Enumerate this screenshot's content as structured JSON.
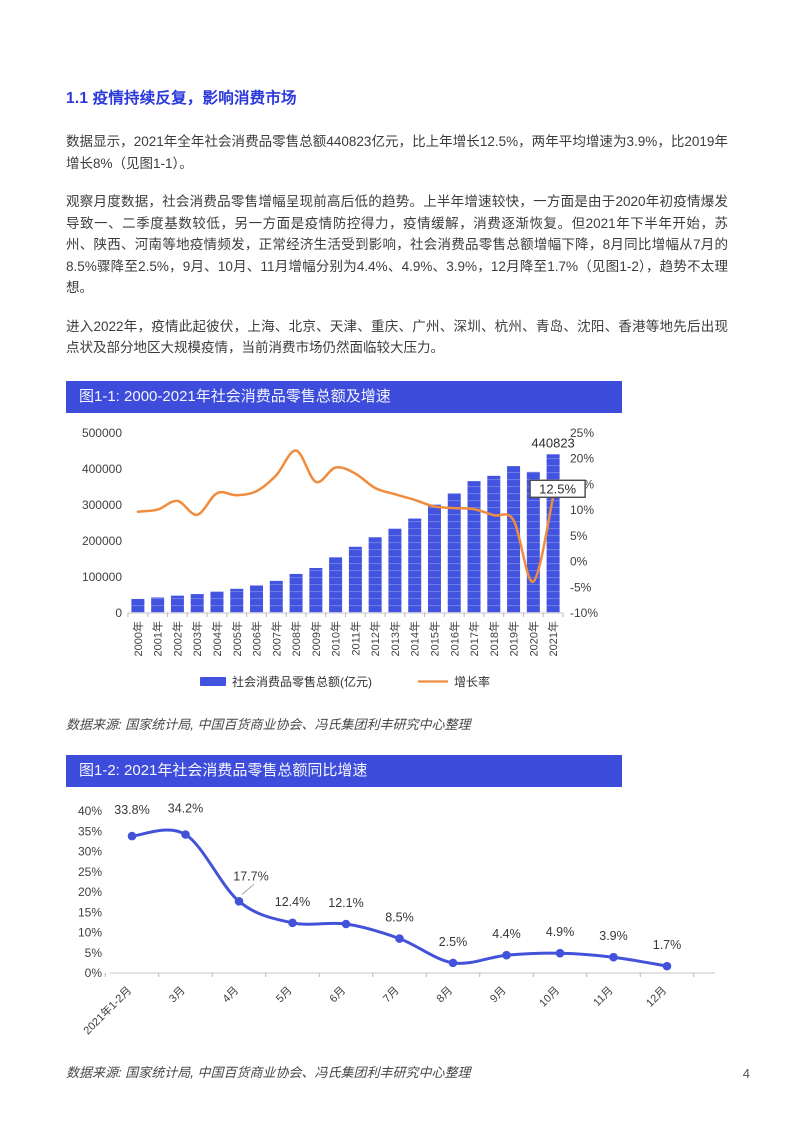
{
  "page": {
    "number": "4"
  },
  "heading": "1.1 疫情持续反复，影响消费市场",
  "paragraphs": [
    "数据显示，2021年全年社会消费品零售总额440823亿元，比上年增长12.5%，两年平均增速为3.9%，比2019年增长8%（见图1-1）。",
    "观察月度数据，社会消费品零售增幅呈现前高后低的趋势。上半年增速较快，一方面是由于2020年初疫情爆发导致一、二季度基数较低，另一方面是疫情防控得力，疫情缓解，消费逐渐恢复。但2021年下半年开始，苏州、陕西、河南等地疫情频发，正常经济生活受到影响，社会消费品零售总额增幅下降，8月同比增幅从7月的8.5%骤降至2.5%，9月、10月、11月增幅分别为4.4%、4.9%、3.9%，12月降至1.7%（见图1-2），趋势不太理想。",
    "进入2022年，疫情此起彼伏，上海、北京、天津、重庆、广州、深圳、杭州、青岛、沈阳、香港等地先后出现点状及部分地区大规模疫情，当前消费市场仍然面临较大压力。"
  ],
  "figure1": {
    "title": "图1-1: 2000-2021年社会消费品零售总额及增速",
    "source": "数据来源: 国家统计局, 中国百货商业协会、冯氏集团利丰研究中心整理"
  },
  "figure2": {
    "title": "图1-2: 2021年社会消费品零售总额同比增速",
    "source": "数据来源: 国家统计局, 中国百货商业协会、冯氏集团利丰研究中心整理"
  },
  "colors": {
    "heading_blue": "#2c39da",
    "titlebar_blue": "#3d4cda",
    "bar_blue": "#4254df",
    "line_orange": "#ef8c3e",
    "line2_blue": "#4353d9",
    "axis_text": "#404040",
    "baseline_gray": "#d9d9d9"
  },
  "chart_data": [
    {
      "type": "bar",
      "title": "图1-1: 2000-2021年社会消费品零售总额及增速",
      "categories": [
        "2000年",
        "2001年",
        "2002年",
        "2003年",
        "2004年",
        "2005年",
        "2006年",
        "2007年",
        "2008年",
        "2009年",
        "2010年",
        "2011年",
        "2012年",
        "2013年",
        "2014年",
        "2015年",
        "2016年",
        "2017年",
        "2018年",
        "2019年",
        "2020年",
        "2021年"
      ],
      "series": [
        {
          "name": "社会消费品零售总额(亿元)",
          "type": "bar",
          "axis": "left",
          "values": [
            39106,
            43055,
            48136,
            52516,
            59501,
            67177,
            76410,
            89210,
            108488,
            125048,
            154554,
            183919,
            210307,
            234380,
            262394,
            300931,
            332316,
            366262,
            380987,
            408017,
            391981,
            440823
          ]
        },
        {
          "name": "增长率",
          "type": "line",
          "axis": "right",
          "values": [
            9.7,
            10.1,
            11.8,
            9.1,
            13.3,
            12.9,
            13.7,
            16.8,
            21.6,
            15.5,
            18.3,
            17.1,
            14.3,
            13.1,
            12.0,
            10.7,
            10.4,
            10.2,
            9.0,
            8.0,
            -3.9,
            12.5
          ]
        }
      ],
      "left_axis": {
        "min": 0,
        "max": 500000,
        "ticks": [
          "0",
          "100000",
          "200000",
          "300000",
          "400000",
          "500000"
        ]
      },
      "right_axis": {
        "min": -10,
        "max": 25,
        "ticks": [
          "-10%",
          "-5%",
          "0%",
          "5%",
          "10%",
          "15%",
          "20%",
          "25%"
        ]
      },
      "annotations": {
        "last_bar_value": "440823",
        "line_end_label": "12.5%"
      },
      "legend_position": "bottom",
      "grid": false
    },
    {
      "type": "line",
      "title": "图1-2: 2021年社会消费品零售总额同比增速",
      "categories": [
        "2021年1-2月",
        "3月",
        "4月",
        "5月",
        "6月",
        "7月",
        "8月",
        "9月",
        "10月",
        "11月",
        "12月"
      ],
      "values": [
        33.8,
        34.2,
        17.7,
        12.4,
        12.1,
        8.5,
        2.5,
        4.4,
        4.9,
        3.9,
        1.7
      ],
      "data_labels": [
        "33.8%",
        "34.2%",
        "17.7%",
        "12.4%",
        "12.1%",
        "8.5%",
        "2.5%",
        "4.4%",
        "4.9%",
        "3.9%",
        "1.7%"
      ],
      "yaxis": {
        "min": 0,
        "max": 40,
        "ticks": [
          "0%",
          "5%",
          "10%",
          "15%",
          "20%",
          "25%",
          "30%",
          "35%",
          "40%"
        ]
      },
      "legend_position": "none",
      "grid": false
    }
  ]
}
